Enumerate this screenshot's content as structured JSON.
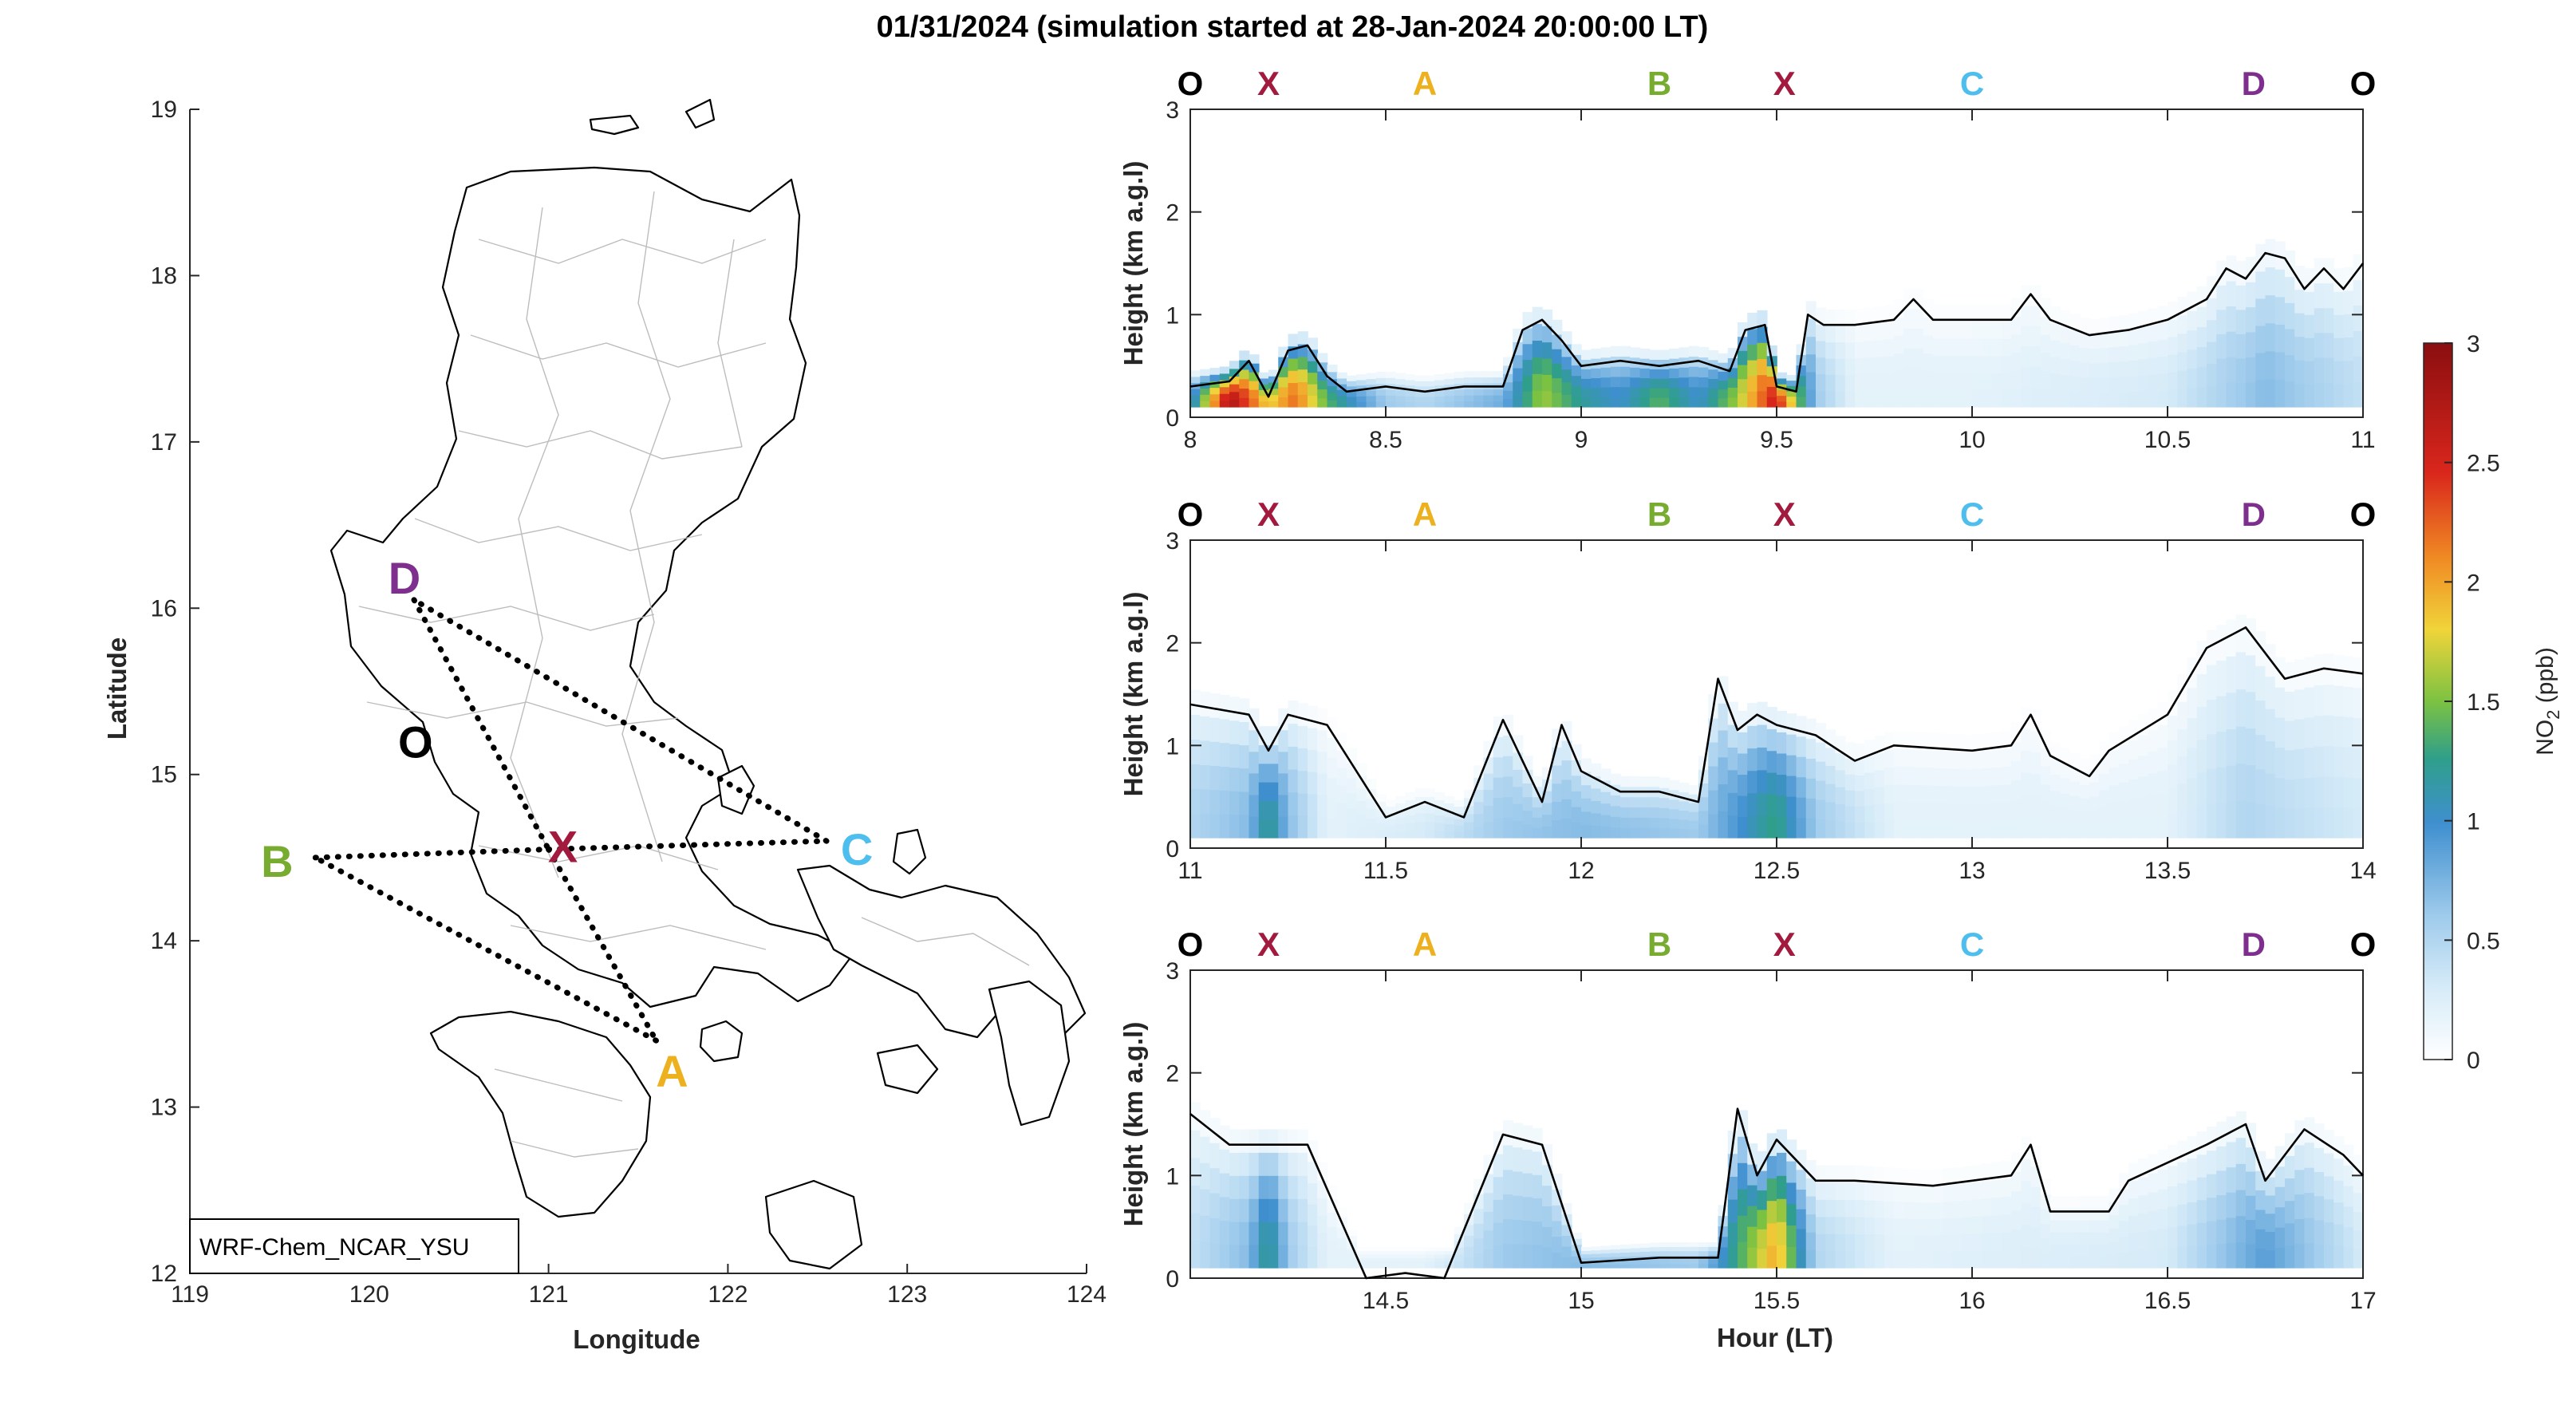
{
  "figure": {
    "title": "01/31/2024 (simulation started at 28-Jan-2024 20:00:00 LT)"
  },
  "map": {
    "xlabel": "Longitude",
    "ylabel": "Latitude",
    "xticks": [
      "119",
      "120",
      "121",
      "122",
      "123",
      "124"
    ],
    "yticks": [
      "12",
      "13",
      "14",
      "15",
      "16",
      "17",
      "18",
      "19"
    ],
    "xlim": [
      119,
      124
    ],
    "ylim": [
      12,
      19
    ],
    "model_label": "WRF-Chem_NCAR_YSU",
    "points": [
      {
        "label": "O",
        "lon": 120.4,
        "lat": 15.15,
        "color": "#000000"
      },
      {
        "label": "X",
        "lon": 121.0,
        "lat": 14.55,
        "color": "#a21a3d"
      },
      {
        "label": "A",
        "lon": 121.6,
        "lat": 13.4,
        "color": "#edb120"
      },
      {
        "label": "B",
        "lon": 119.7,
        "lat": 14.5,
        "color": "#77ac30"
      },
      {
        "label": "C",
        "lon": 122.55,
        "lat": 14.6,
        "color": "#4dbeee"
      },
      {
        "label": "D",
        "lon": 120.25,
        "lat": 16.05,
        "color": "#7e2f8e"
      }
    ],
    "route": [
      "X",
      "A",
      "B",
      "X",
      "C",
      "D",
      "X"
    ]
  },
  "colorbar": {
    "label": "NO2 (ppb)",
    "label_main": "NO",
    "label_sub": "2",
    "label_unit": " (ppb)",
    "ticks": [
      "0",
      "0.5",
      "1",
      "1.5",
      "2",
      "2.5",
      "3"
    ],
    "range": [
      0,
      3
    ]
  },
  "chart_data": {
    "type": "heatmap",
    "xlabel": "Hour (LT)",
    "ylabel": "Height (km a.g.l)",
    "station_order": [
      "O",
      "X",
      "A",
      "B",
      "X",
      "C",
      "D",
      "O"
    ],
    "station_colors": {
      "O": "#000000",
      "X": "#a21a3d",
      "A": "#edb120",
      "B": "#77ac30",
      "C": "#4dbeee",
      "D": "#7e2f8e"
    },
    "panels": [
      {
        "xlim": [
          8,
          11
        ],
        "ylim": [
          0,
          3
        ],
        "xticks": [
          "8",
          "8.5",
          "9",
          "9.5",
          "10",
          "10.5",
          "11"
        ],
        "yticks": [
          "0",
          "1",
          "2",
          "3"
        ],
        "station_hours": [
          8.0,
          8.2,
          8.6,
          9.2,
          9.52,
          10.0,
          10.72,
          11.0
        ],
        "pbl_height_km": [
          [
            8.0,
            0.3
          ],
          [
            8.1,
            0.35
          ],
          [
            8.15,
            0.55
          ],
          [
            8.2,
            0.2
          ],
          [
            8.25,
            0.65
          ],
          [
            8.3,
            0.7
          ],
          [
            8.35,
            0.4
          ],
          [
            8.4,
            0.25
          ],
          [
            8.5,
            0.3
          ],
          [
            8.6,
            0.25
          ],
          [
            8.7,
            0.3
          ],
          [
            8.8,
            0.3
          ],
          [
            8.85,
            0.85
          ],
          [
            8.9,
            0.95
          ],
          [
            8.95,
            0.75
          ],
          [
            9.0,
            0.5
          ],
          [
            9.1,
            0.55
          ],
          [
            9.2,
            0.5
          ],
          [
            9.3,
            0.55
          ],
          [
            9.38,
            0.45
          ],
          [
            9.42,
            0.85
          ],
          [
            9.47,
            0.9
          ],
          [
            9.5,
            0.3
          ],
          [
            9.55,
            0.25
          ],
          [
            9.58,
            1.0
          ],
          [
            9.62,
            0.9
          ],
          [
            9.7,
            0.9
          ],
          [
            9.8,
            0.95
          ],
          [
            9.85,
            1.15
          ],
          [
            9.9,
            0.95
          ],
          [
            10.0,
            0.95
          ],
          [
            10.1,
            0.95
          ],
          [
            10.15,
            1.2
          ],
          [
            10.2,
            0.95
          ],
          [
            10.3,
            0.8
          ],
          [
            10.4,
            0.85
          ],
          [
            10.5,
            0.95
          ],
          [
            10.6,
            1.15
          ],
          [
            10.65,
            1.45
          ],
          [
            10.7,
            1.35
          ],
          [
            10.75,
            1.6
          ],
          [
            10.8,
            1.55
          ],
          [
            10.85,
            1.25
          ],
          [
            10.9,
            1.45
          ],
          [
            10.95,
            1.25
          ],
          [
            11.0,
            1.5
          ]
        ],
        "no2_ppb_surface": [
          [
            8.0,
            0.9
          ],
          [
            8.1,
            2.8
          ],
          [
            8.2,
            1.8
          ],
          [
            8.27,
            2.2
          ],
          [
            8.35,
            1.4
          ],
          [
            8.5,
            0.6
          ],
          [
            8.6,
            0.5
          ],
          [
            8.8,
            0.8
          ],
          [
            8.9,
            1.6
          ],
          [
            9.0,
            1.2
          ],
          [
            9.1,
            1.0
          ],
          [
            9.2,
            1.4
          ],
          [
            9.3,
            1.0
          ],
          [
            9.4,
            1.6
          ],
          [
            9.5,
            2.6
          ],
          [
            9.6,
            0.6
          ],
          [
            9.7,
            0.2
          ],
          [
            10.0,
            0.2
          ],
          [
            10.5,
            0.3
          ],
          [
            10.75,
            0.7
          ],
          [
            11.0,
            0.4
          ]
        ]
      },
      {
        "xlim": [
          11,
          14
        ],
        "ylim": [
          0,
          3
        ],
        "xticks": [
          "11",
          "11.5",
          "12",
          "12.5",
          "13",
          "13.5",
          "14"
        ],
        "yticks": [
          "0",
          "1",
          "2",
          "3"
        ],
        "station_hours": [
          11.0,
          11.2,
          11.6,
          12.2,
          12.52,
          13.0,
          13.72,
          14.0
        ],
        "pbl_height_km": [
          [
            11.0,
            1.4
          ],
          [
            11.15,
            1.3
          ],
          [
            11.2,
            0.95
          ],
          [
            11.25,
            1.3
          ],
          [
            11.35,
            1.2
          ],
          [
            11.5,
            0.3
          ],
          [
            11.6,
            0.45
          ],
          [
            11.7,
            0.3
          ],
          [
            11.8,
            1.25
          ],
          [
            11.9,
            0.45
          ],
          [
            11.95,
            1.2
          ],
          [
            12.0,
            0.75
          ],
          [
            12.1,
            0.55
          ],
          [
            12.2,
            0.55
          ],
          [
            12.3,
            0.45
          ],
          [
            12.35,
            1.65
          ],
          [
            12.4,
            1.15
          ],
          [
            12.45,
            1.3
          ],
          [
            12.5,
            1.2
          ],
          [
            12.6,
            1.1
          ],
          [
            12.7,
            0.85
          ],
          [
            12.8,
            1.0
          ],
          [
            13.0,
            0.95
          ],
          [
            13.1,
            1.0
          ],
          [
            13.15,
            1.3
          ],
          [
            13.2,
            0.9
          ],
          [
            13.3,
            0.7
          ],
          [
            13.35,
            0.95
          ],
          [
            13.5,
            1.3
          ],
          [
            13.6,
            1.95
          ],
          [
            13.7,
            2.15
          ],
          [
            13.8,
            1.65
          ],
          [
            13.9,
            1.75
          ],
          [
            14.0,
            1.7
          ]
        ],
        "no2_ppb_surface": [
          [
            11.0,
            0.5
          ],
          [
            11.15,
            0.7
          ],
          [
            11.2,
            1.3
          ],
          [
            11.25,
            0.7
          ],
          [
            11.35,
            0.2
          ],
          [
            11.6,
            0.3
          ],
          [
            11.8,
            0.6
          ],
          [
            12.0,
            0.7
          ],
          [
            12.3,
            0.6
          ],
          [
            12.5,
            1.3
          ],
          [
            12.6,
            0.6
          ],
          [
            12.8,
            0.2
          ],
          [
            13.5,
            0.2
          ],
          [
            13.7,
            0.5
          ],
          [
            14.0,
            0.3
          ]
        ]
      },
      {
        "xlim": [
          14,
          17
        ],
        "ylim": [
          0,
          3
        ],
        "xticks": [
          "14.5",
          "15",
          "15.5",
          "16",
          "16.5",
          "17"
        ],
        "yticks": [
          "0",
          "1",
          "2",
          "3"
        ],
        "station_hours": [
          14.0,
          14.2,
          14.6,
          15.2,
          15.52,
          16.0,
          16.72,
          17.0
        ],
        "pbl_height_km": [
          [
            14.0,
            1.6
          ],
          [
            14.1,
            1.3
          ],
          [
            14.3,
            1.3
          ],
          [
            14.45,
            0.0
          ],
          [
            14.55,
            0.05
          ],
          [
            14.65,
            0.0
          ],
          [
            14.8,
            1.4
          ],
          [
            14.9,
            1.3
          ],
          [
            15.0,
            0.15
          ],
          [
            15.2,
            0.2
          ],
          [
            15.35,
            0.2
          ],
          [
            15.4,
            1.65
          ],
          [
            15.45,
            1.0
          ],
          [
            15.5,
            1.35
          ],
          [
            15.6,
            0.95
          ],
          [
            15.7,
            0.95
          ],
          [
            15.9,
            0.9
          ],
          [
            16.0,
            0.95
          ],
          [
            16.1,
            1.0
          ],
          [
            16.15,
            1.3
          ],
          [
            16.2,
            0.65
          ],
          [
            16.35,
            0.65
          ],
          [
            16.4,
            0.95
          ],
          [
            16.6,
            1.3
          ],
          [
            16.7,
            1.5
          ],
          [
            16.75,
            0.95
          ],
          [
            16.85,
            1.45
          ],
          [
            16.95,
            1.2
          ],
          [
            17.0,
            1.0
          ]
        ],
        "no2_ppb_surface": [
          [
            14.0,
            0.4
          ],
          [
            14.15,
            0.7
          ],
          [
            14.2,
            1.3
          ],
          [
            14.25,
            0.6
          ],
          [
            14.35,
            0.2
          ],
          [
            14.6,
            0.2
          ],
          [
            14.8,
            0.6
          ],
          [
            15.0,
            0.7
          ],
          [
            15.3,
            0.6
          ],
          [
            15.5,
            2.0
          ],
          [
            15.6,
            0.5
          ],
          [
            15.8,
            0.2
          ],
          [
            16.5,
            0.3
          ],
          [
            16.75,
            0.9
          ],
          [
            17.0,
            0.3
          ]
        ]
      }
    ]
  }
}
